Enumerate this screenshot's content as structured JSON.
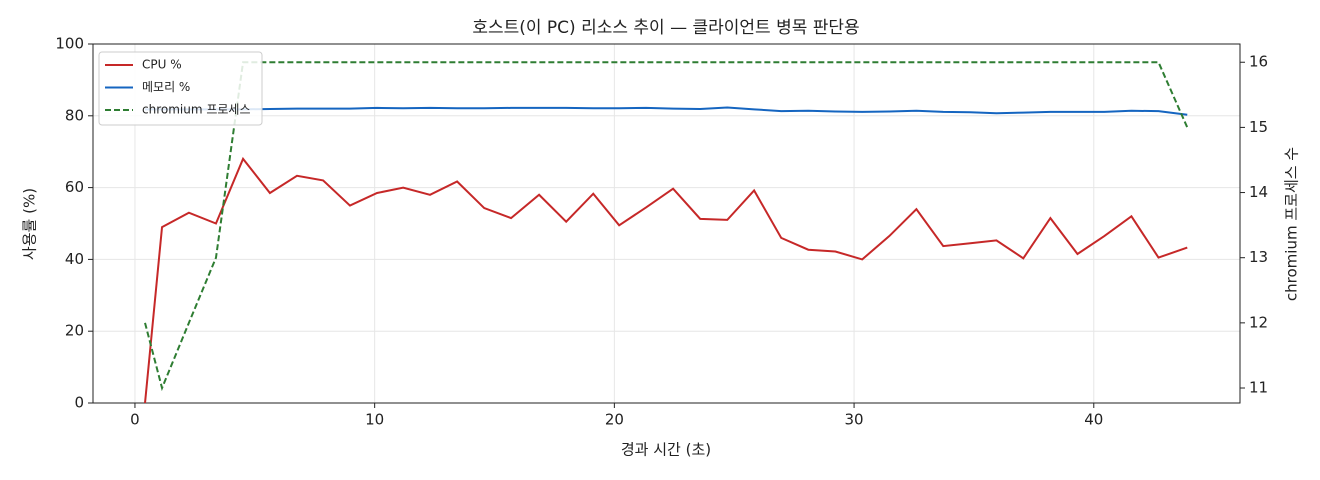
{
  "chart_data": {
    "type": "line",
    "title": "호스트(이 PC) 리소스 추이 — 클라이언트 병목 판단용",
    "x_label": "경과 시간 (초)",
    "y_label": "사용률 (%)",
    "y2_label": "chromium 프로세스 수",
    "x": [
      0.42,
      1.13,
      2.25,
      3.38,
      4.51,
      5.63,
      6.76,
      7.85,
      8.97,
      10.1,
      11.19,
      12.31,
      13.44,
      14.57,
      15.69,
      16.86,
      17.99,
      19.12,
      20.2,
      21.33,
      22.45,
      23.58,
      24.71,
      25.83,
      26.96,
      28.09,
      29.22,
      30.34,
      31.47,
      32.6,
      33.72,
      34.85,
      35.94,
      37.06,
      38.19,
      39.32,
      40.44,
      41.57,
      42.7,
      43.9
    ],
    "series": [
      {
        "name": "CPU %",
        "color": "#c62828",
        "dashed": false,
        "values": [
          0,
          49,
          53,
          50,
          68,
          58.5,
          63.3,
          62,
          55,
          58.5,
          60,
          58,
          61.7,
          54.3,
          51.5,
          58,
          50.5,
          58.3,
          49.5,
          54.5,
          59.7,
          51.3,
          51,
          59.2,
          46,
          42.7,
          42.2,
          40,
          46.5,
          54,
          43.7,
          44.5,
          45.3,
          40.3,
          51.5,
          41.5,
          46.5,
          52,
          40.5,
          43.3
        ]
      },
      {
        "name": "메모리 %",
        "color": "#1565c0",
        "dashed": false,
        "values": [
          81.8,
          81.8,
          81.8,
          81.8,
          81.8,
          81.9,
          82,
          82,
          82,
          82.2,
          82.1,
          82.2,
          82.1,
          82.1,
          82.2,
          82.2,
          82.2,
          82.1,
          82.1,
          82.2,
          82,
          81.9,
          82.3,
          81.8,
          81.3,
          81.4,
          81.2,
          81.1,
          81.2,
          81.4,
          81.1,
          81,
          80.7,
          80.9,
          81.1,
          81.1,
          81.1,
          81.4,
          81.3,
          80.3
        ]
      },
      {
        "name": "chromium 프로세스",
        "color": "#2e7d32",
        "dashed": true,
        "axis": "y2",
        "values": [
          12,
          11,
          12,
          13,
          16,
          16,
          16,
          16,
          16,
          16,
          16,
          16,
          16,
          16,
          16,
          16,
          16,
          16,
          16,
          16,
          16,
          16,
          16,
          16,
          16,
          16,
          16,
          16,
          16,
          16,
          16,
          16,
          16,
          16,
          16,
          16,
          16,
          16,
          16,
          15
        ]
      }
    ],
    "xlim": [
      -1.75,
      46.1
    ],
    "xticks": [
      0,
      10,
      20,
      30,
      40
    ],
    "ylim": [
      0,
      100
    ],
    "yticks": [
      0,
      20,
      40,
      60,
      80,
      100
    ],
    "y2lim": [
      10.77,
      16.28
    ],
    "y2ticks": [
      11,
      12,
      13,
      14,
      15,
      16
    ],
    "grid": true,
    "legend": "upper left"
  }
}
